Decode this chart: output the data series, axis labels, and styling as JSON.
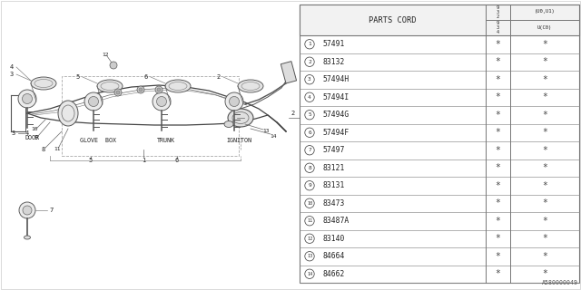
{
  "bg_color": "#ffffff",
  "parts": [
    {
      "num": "1",
      "code": "57491"
    },
    {
      "num": "2",
      "code": "83132"
    },
    {
      "num": "3",
      "code": "57494H"
    },
    {
      "num": "4",
      "code": "57494I"
    },
    {
      "num": "5",
      "code": "57494G"
    },
    {
      "num": "6",
      "code": "57494F"
    },
    {
      "num": "7",
      "code": "57497"
    },
    {
      "num": "8",
      "code": "83121"
    },
    {
      "num": "9",
      "code": "83131"
    },
    {
      "num": "10",
      "code": "83473"
    },
    {
      "num": "11",
      "code": "83487A"
    },
    {
      "num": "12",
      "code": "83140"
    },
    {
      "num": "13",
      "code": "84664"
    },
    {
      "num": "14",
      "code": "84662"
    }
  ],
  "key_labels": [
    "DOOR",
    "GLOVE  BOX",
    "TRUNK",
    "IGNITON"
  ],
  "footer": "A580000049",
  "line_color": "#555555",
  "text_color": "#222222"
}
